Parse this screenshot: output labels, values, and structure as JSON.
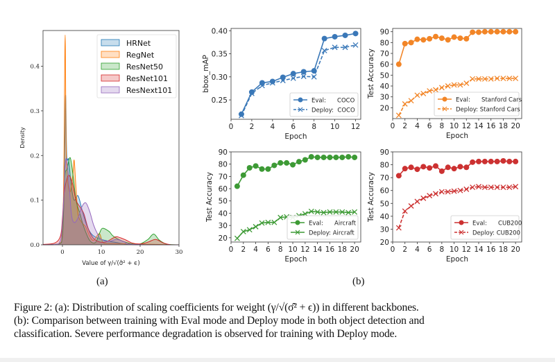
{
  "figure": {
    "sub_a_label": "(a)",
    "sub_b_label": "(b)",
    "caption_lines": [
      "Figure 2: (a): Distribution of scaling coefficients for weight (γ/√(σ̂² + ϵ)) in different backbones.",
      "(b): Comparison between training with Eval mode and Deploy mode in both object detection and",
      "classification. Severe performance degradation is observed for training with Deploy mode."
    ]
  },
  "chart_data": [
    {
      "id": "density",
      "type": "area",
      "title": "",
      "xlabel": "Value of γ/√(σ̂² + ϵ)",
      "ylabel": "Density",
      "xlim": [
        -5,
        30
      ],
      "ylim": [
        0,
        0.48
      ],
      "xticks": [
        0,
        10,
        20,
        30
      ],
      "yticks": [
        0.0,
        0.1,
        0.2,
        0.3,
        0.4
      ],
      "ytick_labels": [
        "0.0",
        "0.1",
        "0.2",
        "0.3",
        "0.4"
      ],
      "legend_position": "top-right",
      "grid": false,
      "series": [
        {
          "name": "HRNet",
          "color": "#1f77b4",
          "points": [
            [
              -5,
              0
            ],
            [
              -1,
              0.002
            ],
            [
              0,
              0.02
            ],
            [
              0.5,
              0.15
            ],
            [
              0.8,
              0.335
            ],
            [
              1.1,
              0.2
            ],
            [
              1.6,
              0.19
            ],
            [
              2.3,
              0.13
            ],
            [
              3,
              0.1
            ],
            [
              4,
              0.11
            ],
            [
              5,
              0.08
            ],
            [
              6,
              0.05
            ],
            [
              7,
              0.03
            ],
            [
              8,
              0.02
            ],
            [
              10,
              0.012
            ],
            [
              12,
              0.008
            ],
            [
              14,
              0.005
            ],
            [
              16,
              0.002
            ],
            [
              20,
              0
            ],
            [
              30,
              0
            ]
          ]
        },
        {
          "name": "RegNet",
          "color": "#ff7f0e",
          "points": [
            [
              -5,
              0
            ],
            [
              -1,
              0.002
            ],
            [
              0,
              0.03
            ],
            [
              0.4,
              0.2
            ],
            [
              0.7,
              0.47
            ],
            [
              1.0,
              0.2
            ],
            [
              1.8,
              0.12
            ],
            [
              2.6,
              0.15
            ],
            [
              3.0,
              0.19
            ],
            [
              3.4,
              0.14
            ],
            [
              4,
              0.07
            ],
            [
              5,
              0.05
            ],
            [
              6,
              0.04
            ],
            [
              7,
              0.02
            ],
            [
              8,
              0.01
            ],
            [
              9.5,
              0.025
            ],
            [
              10.5,
              0.005
            ],
            [
              13,
              0.003
            ],
            [
              30,
              0
            ]
          ]
        },
        {
          "name": "ResNet50",
          "color": "#2ca02c",
          "points": [
            [
              -5,
              0
            ],
            [
              -1,
              0.002
            ],
            [
              0,
              0.02
            ],
            [
              0.6,
              0.15
            ],
            [
              1.2,
              0.17
            ],
            [
              2.0,
              0.195
            ],
            [
              2.8,
              0.15
            ],
            [
              3.5,
              0.1
            ],
            [
              4.5,
              0.07
            ],
            [
              5.5,
              0.04
            ],
            [
              7,
              0.01
            ],
            [
              8.5,
              0.005
            ],
            [
              9.5,
              0.025
            ],
            [
              10.3,
              0.037
            ],
            [
              12,
              0.03
            ],
            [
              13,
              0.02
            ],
            [
              15,
              0.01
            ],
            [
              18,
              0.002
            ],
            [
              20,
              0.002
            ],
            [
              22,
              0.012
            ],
            [
              23.5,
              0.024
            ],
            [
              25,
              0.01
            ],
            [
              27,
              0.001
            ],
            [
              30,
              0
            ]
          ]
        },
        {
          "name": "ResNet101",
          "color": "#d62728",
          "points": [
            [
              -5,
              0.001
            ],
            [
              -2,
              0.004
            ],
            [
              -0.5,
              0.02
            ],
            [
              0,
              0.06
            ],
            [
              0.5,
              0.12
            ],
            [
              1.5,
              0.155
            ],
            [
              2.5,
              0.14
            ],
            [
              3.5,
              0.1
            ],
            [
              4.5,
              0.085
            ],
            [
              5.5,
              0.07
            ],
            [
              6.5,
              0.04
            ],
            [
              7.5,
              0.02
            ],
            [
              9,
              0.008
            ],
            [
              11,
              0.006
            ],
            [
              13,
              0.015
            ],
            [
              14,
              0.018
            ],
            [
              16,
              0.012
            ],
            [
              18,
              0.004
            ],
            [
              20,
              0.002
            ],
            [
              22,
              0.006
            ],
            [
              24,
              0.012
            ],
            [
              26,
              0.004
            ],
            [
              28,
              0
            ],
            [
              30,
              0
            ]
          ]
        },
        {
          "name": "ResNext101",
          "color": "#9467bd",
          "points": [
            [
              -5,
              0
            ],
            [
              -1,
              0.002
            ],
            [
              0,
              0.05
            ],
            [
              0.6,
              0.16
            ],
            [
              1.0,
              0.193
            ],
            [
              1.6,
              0.15
            ],
            [
              2.3,
              0.07
            ],
            [
              3,
              0.05
            ],
            [
              4,
              0.06
            ],
            [
              5,
              0.085
            ],
            [
              6,
              0.094
            ],
            [
              7,
              0.075
            ],
            [
              8,
              0.045
            ],
            [
              9,
              0.025
            ],
            [
              10,
              0.012
            ],
            [
              12,
              0.008
            ],
            [
              14,
              0.012
            ],
            [
              16,
              0.006
            ],
            [
              18,
              0.001
            ],
            [
              30,
              0
            ]
          ]
        }
      ]
    },
    {
      "id": "coco",
      "type": "line",
      "xlabel": "Epoch",
      "ylabel": "bbox_mAP",
      "xlim": [
        0,
        12.5
      ],
      "ylim": [
        0.208,
        0.405
      ],
      "xticks": [
        0,
        2,
        4,
        6,
        8,
        10,
        12
      ],
      "yticks": [
        0.25,
        0.3,
        0.35,
        0.4
      ],
      "ytick_labels": [
        "0.25",
        "0.30",
        "0.35",
        "0.40"
      ],
      "color": "#3a78b8",
      "legend_position": "bottom-right",
      "x": [
        1,
        2,
        3,
        4,
        5,
        6,
        7,
        8,
        9,
        10,
        11,
        12
      ],
      "series": [
        {
          "name": "Eval:      COCO",
          "marker": "circle",
          "linestyle": "solid",
          "values": [
            0.219,
            0.267,
            0.287,
            0.29,
            0.299,
            0.307,
            0.311,
            0.313,
            0.383,
            0.387,
            0.39,
            0.394
          ]
        },
        {
          "name": "Deploy:  COCO",
          "marker": "x",
          "linestyle": "dashed",
          "values": [
            0.216,
            0.264,
            0.281,
            0.287,
            0.292,
            0.297,
            0.301,
            0.3,
            0.357,
            0.364,
            0.364,
            0.369
          ]
        }
      ]
    },
    {
      "id": "stanford",
      "type": "line",
      "xlabel": "Epoch",
      "ylabel": "Test Accuracy",
      "xlim": [
        0,
        21
      ],
      "ylim": [
        10,
        93
      ],
      "xticks": [
        0,
        2,
        4,
        6,
        8,
        10,
        12,
        14,
        16,
        18,
        20
      ],
      "yticks": [
        20,
        30,
        40,
        50,
        60,
        70,
        80,
        90
      ],
      "ytick_labels": [
        "20",
        "30",
        "40",
        "50",
        "60",
        "70",
        "80",
        "90"
      ],
      "color": "#f28527",
      "legend_position": "bottom-right",
      "x": [
        1,
        2,
        3,
        4,
        5,
        6,
        7,
        8,
        9,
        10,
        11,
        12,
        13,
        14,
        15,
        16,
        17,
        18,
        19,
        20
      ],
      "series": [
        {
          "name": "Eval:      Stanford Cars",
          "marker": "circle",
          "linestyle": "solid",
          "values": [
            60,
            79,
            80,
            83,
            82.5,
            83.5,
            85.5,
            84,
            82.5,
            85,
            84,
            83.5,
            89.5,
            89.5,
            90,
            90,
            90,
            90,
            90,
            90
          ]
        },
        {
          "name": "Deploy: Stanford Cars",
          "marker": "x",
          "linestyle": "dashed",
          "values": [
            13,
            23.5,
            26.5,
            31.5,
            33,
            35.5,
            36.5,
            38.5,
            40,
            41,
            41,
            42.5,
            46.5,
            46.5,
            46.5,
            46.5,
            47,
            47,
            47,
            47
          ]
        }
      ]
    },
    {
      "id": "aircraft",
      "type": "line",
      "xlabel": "Epoch",
      "ylabel": "Test Accuracy",
      "xlim": [
        0,
        21
      ],
      "ylim": [
        16.5,
        90
      ],
      "xticks": [
        0,
        2,
        4,
        6,
        8,
        10,
        12,
        14,
        16,
        18,
        20
      ],
      "yticks": [
        20,
        30,
        40,
        50,
        60,
        70,
        80,
        90
      ],
      "ytick_labels": [
        "20",
        "30",
        "40",
        "50",
        "60",
        "70",
        "80",
        "90"
      ],
      "color": "#3d9a35",
      "legend_position": "bottom-right",
      "x": [
        1,
        2,
        3,
        4,
        5,
        6,
        7,
        8,
        9,
        10,
        11,
        12,
        13,
        14,
        15,
        16,
        17,
        18,
        19,
        20
      ],
      "series": [
        {
          "name": "Eval:      Aircraft",
          "marker": "circle",
          "linestyle": "solid",
          "values": [
            62,
            71,
            77,
            78.5,
            76,
            76,
            79,
            81,
            81,
            79.5,
            82,
            83.5,
            86,
            85.5,
            85.5,
            85.5,
            85.5,
            85.5,
            86,
            85.5
          ]
        },
        {
          "name": "Deploy: Aircraft",
          "marker": "x",
          "linestyle": "solid",
          "values": [
            19.5,
            25,
            26.5,
            29,
            32,
            32.5,
            32.5,
            36.5,
            37,
            36.5,
            38,
            39.5,
            41.5,
            41,
            40.5,
            41,
            41,
            41,
            40.5,
            41
          ]
        }
      ]
    },
    {
      "id": "cub",
      "type": "line",
      "xlabel": "Epoch",
      "ylabel": "Test Accuracy",
      "xlim": [
        0,
        21
      ],
      "ylim": [
        20,
        90
      ],
      "xticks": [
        0,
        2,
        4,
        6,
        8,
        10,
        12,
        14,
        16,
        18,
        20
      ],
      "yticks": [
        20,
        30,
        40,
        50,
        60,
        70,
        80,
        90
      ],
      "ytick_labels": [
        "20",
        "30",
        "40",
        "50",
        "60",
        "70",
        "80",
        "90"
      ],
      "color": "#cc3131",
      "legend_position": "bottom-right",
      "x": [
        1,
        2,
        3,
        4,
        5,
        6,
        7,
        8,
        9,
        10,
        11,
        12,
        13,
        14,
        15,
        16,
        17,
        18,
        19,
        20
      ],
      "series": [
        {
          "name": "Eval:      CUB200",
          "marker": "circle",
          "linestyle": "solid",
          "values": [
            71.5,
            77,
            78,
            76.5,
            78.5,
            77.5,
            79,
            75,
            78,
            77,
            78.5,
            78,
            82,
            82.5,
            82.5,
            82.5,
            82.5,
            83,
            82.5,
            82.5
          ]
        },
        {
          "name": "Deploy: CUB200",
          "marker": "x",
          "linestyle": "dashed",
          "values": [
            31,
            44,
            48,
            51.5,
            54,
            56,
            57.5,
            59,
            59,
            59.5,
            60,
            61,
            62.5,
            63,
            62.5,
            62.5,
            62.5,
            62.5,
            62.5,
            63
          ]
        }
      ]
    }
  ]
}
